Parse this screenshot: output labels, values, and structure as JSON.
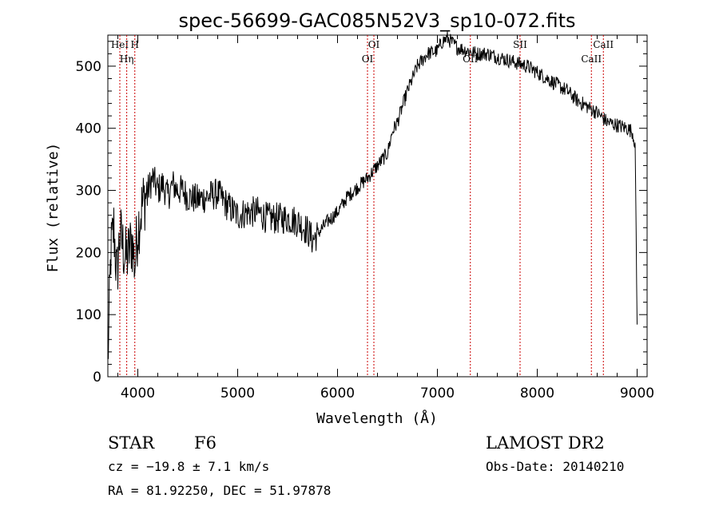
{
  "chart_data": {
    "type": "line",
    "title": "spec-56699-GAC085N52V3_sp10-072.fits",
    "xlabel": "Wavelength (Å)",
    "ylabel": "Flux (relative)",
    "xlim": [
      3700,
      9100
    ],
    "ylim": [
      0,
      550
    ],
    "x_ticks": [
      4000,
      5000,
      6000,
      7000,
      8000,
      9000
    ],
    "y_ticks": [
      0,
      100,
      200,
      300,
      400,
      500
    ],
    "x_tick_labels": [
      "4000",
      "5000",
      "6000",
      "7000",
      "8000",
      "9000"
    ],
    "y_tick_labels": [
      "0",
      "100",
      "200",
      "300",
      "400",
      "500"
    ],
    "grid": false,
    "series": [
      {
        "x": [
          3700,
          3730,
          3760,
          3790,
          3820,
          3850,
          3880,
          3910,
          3940,
          3970,
          4000,
          4050,
          4100,
          4150,
          4200,
          4250,
          4300,
          4350,
          4400,
          4450,
          4500,
          4600,
          4700,
          4800,
          4900,
          5000,
          5100,
          5200,
          5300,
          5400,
          5500,
          5600,
          5700,
          5750,
          5800,
          5900,
          6000,
          6100,
          6200,
          6300,
          6350,
          6400,
          6450,
          6500,
          6550,
          6600,
          6700,
          6800,
          6900,
          7000,
          7050,
          7100,
          7200,
          7300,
          7400,
          7500,
          7600,
          7700,
          7800,
          7900,
          8000,
          8100,
          8200,
          8300,
          8400,
          8500,
          8600,
          8700,
          8800,
          8900,
          8950,
          8980,
          9000
        ],
        "y": [
          20,
          200,
          240,
          160,
          230,
          210,
          190,
          200,
          220,
          180,
          240,
          280,
          300,
          320,
          300,
          310,
          290,
          310,
          300,
          300,
          290,
          285,
          290,
          295,
          275,
          260,
          265,
          265,
          255,
          255,
          255,
          250,
          235,
          220,
          230,
          250,
          265,
          290,
          305,
          320,
          330,
          340,
          350,
          360,
          395,
          410,
          460,
          500,
          520,
          525,
          540,
          545,
          530,
          525,
          520,
          520,
          515,
          510,
          505,
          500,
          490,
          480,
          470,
          460,
          445,
          435,
          425,
          410,
          405,
          400,
          395,
          375,
          80
        ]
      }
    ],
    "spectral_lines": [
      {
        "label": "HeI",
        "wavelength": 3820
      },
      {
        "label": "Hη",
        "wavelength": 3889
      },
      {
        "label": "H",
        "wavelength": 3970
      },
      {
        "label": "OI",
        "wavelength": 6300
      },
      {
        "label": "OI",
        "wavelength": 6364
      },
      {
        "label": "OII",
        "wavelength": 7330
      },
      {
        "label": "SII",
        "wavelength": 7828
      },
      {
        "label": "CaII",
        "wavelength": 8542
      },
      {
        "label": "CaII",
        "wavelength": 8662
      }
    ],
    "line_style": {
      "spectrum_color": "#000000",
      "marker_color": "#cc0000"
    }
  },
  "info": {
    "object_class": "STAR",
    "subclass": "F6",
    "survey": "LAMOST DR2",
    "cz": "cz = −19.8 ± 7.1 km/s",
    "obs_date": "Obs-Date: 20140210",
    "coords": "RA =  81.92250, DEC =  51.97878"
  }
}
